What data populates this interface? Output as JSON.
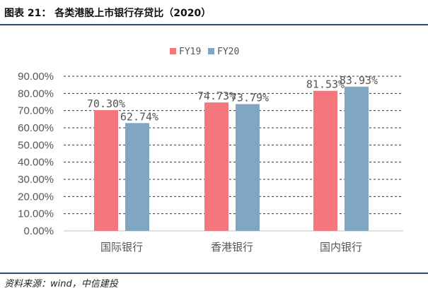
{
  "header": {
    "title": "图表 21：  各类港股上市银行存贷比（2020）"
  },
  "footer": {
    "source": "资料来源：wind，中信建投"
  },
  "chart_data": {
    "type": "bar",
    "title": "各类港股上市银行存贷比（2020）",
    "categories": [
      "国际银行",
      "香港银行",
      "国内银行"
    ],
    "series": [
      {
        "name": "FY19",
        "color": "#f4777d",
        "values": [
          70.3,
          74.73,
          81.53
        ],
        "labels": [
          "70.30%",
          "74.73%",
          "81.53%"
        ]
      },
      {
        "name": "FY20",
        "color": "#7fa7c1",
        "values": [
          62.74,
          73.79,
          83.93
        ],
        "labels": [
          "62.74%",
          "73.79%",
          "83.93%"
        ]
      }
    ],
    "yticks": [
      "0.00%",
      "10.00%",
      "20.00%",
      "30.00%",
      "40.00%",
      "50.00%",
      "60.00%",
      "70.00%",
      "80.00%",
      "90.00%"
    ],
    "ylim": [
      0,
      90
    ],
    "grid": true,
    "legend": "top-center",
    "xlabel": "",
    "ylabel": ""
  }
}
